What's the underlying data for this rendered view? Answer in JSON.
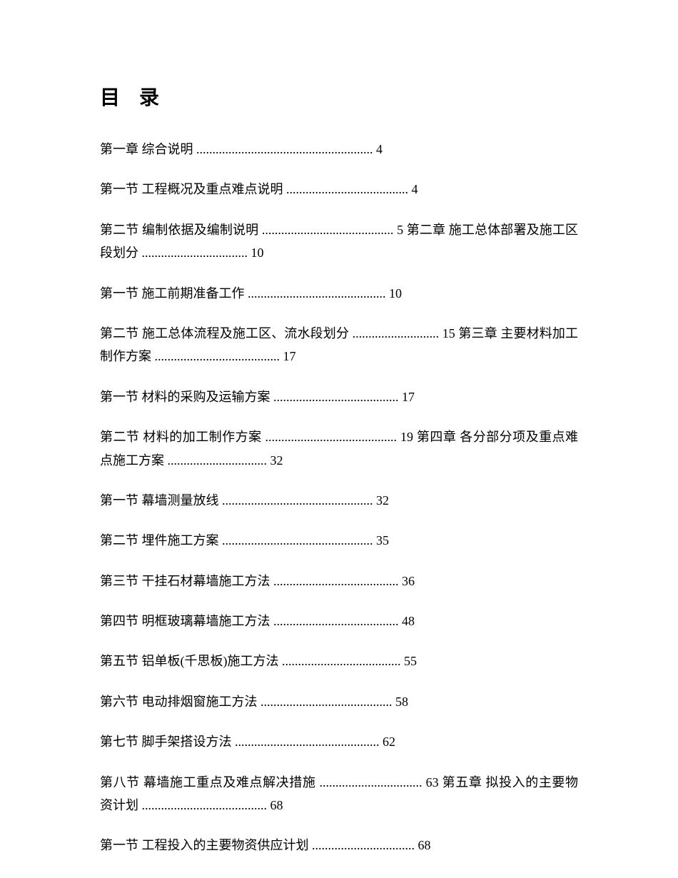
{
  "title": "目 录",
  "entries": [
    {
      "text": "第一章 综合说明 ....................................................... 4",
      "wrap": false
    },
    {
      "text": "第一节 工程概况及重点难点说明 ...................................... 4",
      "wrap": false
    },
    {
      "text": "第二节 编制依据及编制说明 ......................................... 5 第二章 施工总体部署及施工区段划分 ................................. 10",
      "wrap": true
    },
    {
      "text": "第一节 施工前期准备工作 ........................................... 10",
      "wrap": false
    },
    {
      "text": "第二节 施工总体流程及施工区、流水段划分 ........................... 15 第三章 主要材料加工制作方案 ....................................... 17",
      "wrap": true
    },
    {
      "text": "第一节 材料的采购及运输方案 ....................................... 17",
      "wrap": false
    },
    {
      "text": "第二节 材料的加工制作方案 ......................................... 19 第四章 各分部分项及重点难点施工方案 ............................... 32",
      "wrap": true
    },
    {
      "text": "第一节 幕墙测量放线 ............................................... 32",
      "wrap": false
    },
    {
      "text": "第二节 埋件施工方案 ............................................... 35",
      "wrap": false
    },
    {
      "text": "第三节 干挂石材幕墙施工方法 ....................................... 36",
      "wrap": false
    },
    {
      "text": "第四节 明框玻璃幕墙施工方法 ....................................... 48",
      "wrap": false
    },
    {
      "text": "第五节 铝单板(千思板)施工方法 ..................................... 55",
      "wrap": false
    },
    {
      "text": "第六节 电动排烟窗施工方法 ......................................... 58",
      "wrap": false
    },
    {
      "text": "第七节 脚手架搭设方法 ............................................. 62",
      "wrap": false
    },
    {
      "text": "第八节 幕墙施工重点及难点解决措施 ................................ 63 第五章 拟投入的主要物资计划 ....................................... 68",
      "wrap": true
    },
    {
      "text": "第一节 工程投入的主要物资供应计划 ................................ 68",
      "wrap": false
    }
  ]
}
